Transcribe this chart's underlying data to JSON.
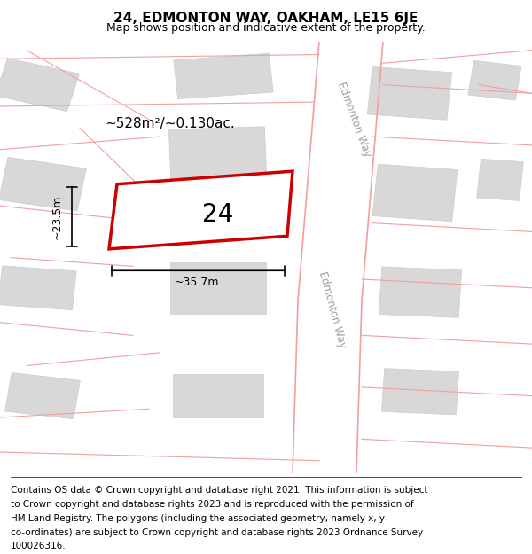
{
  "title": "24, EDMONTON WAY, OAKHAM, LE15 6JE",
  "subtitle": "Map shows position and indicative extent of the property.",
  "footer": "Contains OS data © Crown copyright and database right 2021. This information is subject to Crown copyright and database rights 2023 and is reproduced with the permission of HM Land Registry. The polygons (including the associated geometry, namely x, y co-ordinates) are subject to Crown copyright and database rights 2023 Ordnance Survey 100026316.",
  "map_bg": "#f5f5f5",
  "plot_bg": "#ffffff",
  "area_text": "~528m²/~0.130ac.",
  "plot_number": "24",
  "dim_width": "~35.7m",
  "dim_height": "~23.5m",
  "road_label_1": "Edmonton Way",
  "road_label_2": "Edmonton Way",
  "plot_outline_color": "#cc0000",
  "plot_fill_color": "#ffffff",
  "plot_fill_alpha": 0.0,
  "building_fill": "#d8d8d8",
  "building_edge": "#cccccc",
  "road_line_color": "#f0a0a0",
  "gray_line_color": "#c0b8b8",
  "title_fontsize": 11,
  "subtitle_fontsize": 9,
  "footer_fontsize": 7.5
}
